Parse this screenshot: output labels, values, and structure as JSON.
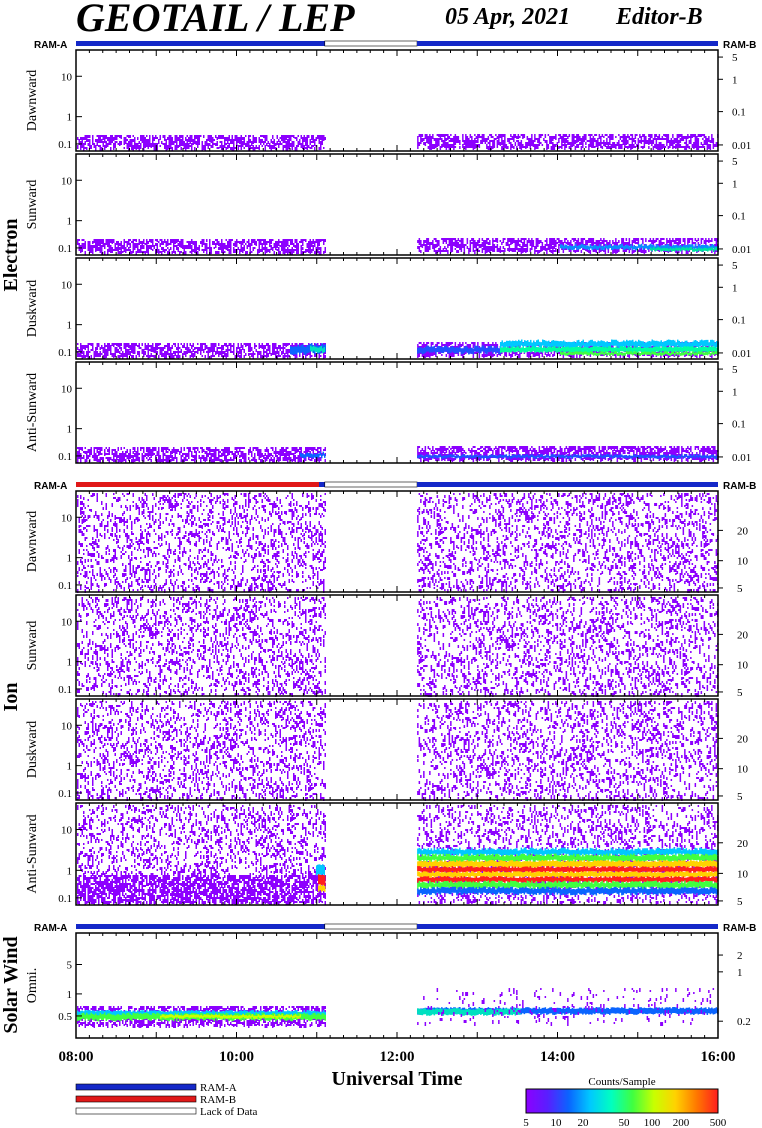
{
  "header": {
    "title": "GEOTAIL / LEP",
    "date": "05 Apr, 2021",
    "editor": "Editor-B"
  },
  "colors": {
    "ram_a": "#1428c8",
    "ram_b": "#e01818",
    "colorbar": [
      "#8c00ff",
      "#5a1eff",
      "#0a64ff",
      "#00c8ff",
      "#00ffc0",
      "#40ff40",
      "#c8ff00",
      "#ffd200",
      "#ff7800",
      "#ff1e1e"
    ]
  },
  "chart_data": {
    "type": "heatmap",
    "xlabel": "Universal Time",
    "x_ticks": [
      "08:00",
      "10:00",
      "12:00",
      "14:00",
      "16:00"
    ],
    "x_range_hours": [
      8,
      16
    ],
    "data_gap_hours": [
      11.1,
      12.25
    ],
    "groups": [
      {
        "name": "Electron",
        "ram_labels": [
          "RAM-A",
          "RAM-B"
        ],
        "panels": [
          {
            "name": "Dawnward",
            "left_ticks": [
              "10",
              "1",
              "0.1"
            ],
            "right_ticks": [
              "5",
              "1",
              "0.1",
              "0.01"
            ]
          },
          {
            "name": "Sunward",
            "left_ticks": [
              "10",
              "1",
              "0.1"
            ],
            "right_ticks": [
              "5",
              "1",
              "0.1",
              "0.01"
            ]
          },
          {
            "name": "Duskward",
            "left_ticks": [
              "10",
              "1",
              "0.1"
            ],
            "right_ticks": [
              "5",
              "1",
              "0.1",
              "0.01"
            ]
          },
          {
            "name": "Anti-Sunward",
            "left_ticks": [
              "10",
              "1",
              "0.1"
            ],
            "right_ticks": [
              "5",
              "1",
              "0.1",
              "0.01"
            ]
          }
        ]
      },
      {
        "name": "Ion",
        "ram_labels": [
          "RAM-A",
          "RAM-B"
        ],
        "panels": [
          {
            "name": "Dawnward",
            "left_ticks": [
              "10",
              "1",
              "0.1"
            ],
            "right_ticks": [
              "20",
              "10",
              "5"
            ]
          },
          {
            "name": "Sunward",
            "left_ticks": [
              "10",
              "1",
              "0.1"
            ],
            "right_ticks": [
              "20",
              "10",
              "5"
            ]
          },
          {
            "name": "Duskward",
            "left_ticks": [
              "10",
              "1",
              "0.1"
            ],
            "right_ticks": [
              "20",
              "10",
              "5"
            ]
          },
          {
            "name": "Anti-Sunward",
            "left_ticks": [
              "10",
              "1",
              "0.1"
            ],
            "right_ticks": [
              "20",
              "10",
              "5"
            ]
          }
        ]
      },
      {
        "name": "Solar Wind",
        "ram_labels": [
          "RAM-A",
          "RAM-B"
        ],
        "panels": [
          {
            "name": "Omni.",
            "left_ticks": [
              "5",
              "1",
              "0.5"
            ],
            "right_ticks": [
              "2",
              "1",
              "0.2"
            ]
          }
        ]
      }
    ],
    "legend": {
      "entries": [
        "RAM-A",
        "RAM-B",
        "Lack of Data"
      ],
      "colorbar_title": "Counts/Sample",
      "colorbar_ticks": [
        "5",
        "10",
        "20",
        "50",
        "100",
        "200",
        "500"
      ]
    }
  }
}
